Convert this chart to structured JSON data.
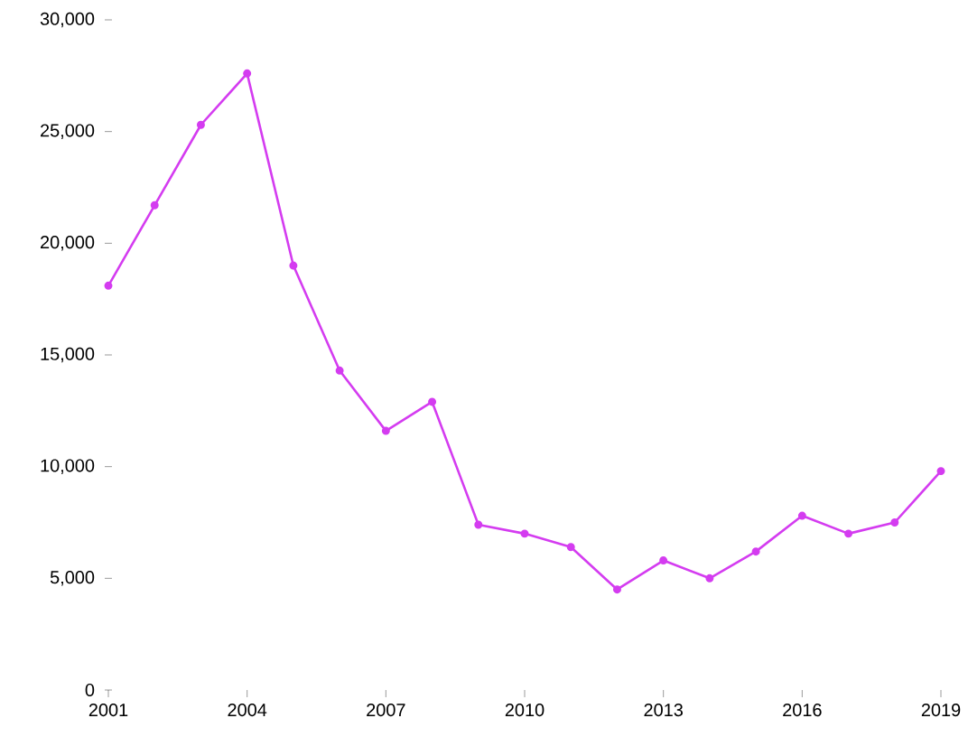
{
  "chart_data": {
    "type": "line",
    "x": [
      2001,
      2002,
      2003,
      2004,
      2005,
      2006,
      2007,
      2008,
      2009,
      2010,
      2011,
      2012,
      2013,
      2014,
      2015,
      2016,
      2017,
      2018,
      2019
    ],
    "series": [
      {
        "color": "#d43cf0",
        "values": [
          18100,
          21700,
          25300,
          27600,
          19000,
          14300,
          11600,
          12900,
          7400,
          7000,
          6400,
          4500,
          5800,
          5000,
          6200,
          7800,
          7000,
          7500,
          9800
        ]
      }
    ],
    "xlim": [
      2001,
      2019
    ],
    "xticks": [
      2001,
      2004,
      2007,
      2010,
      2013,
      2016,
      2019
    ],
    "ylim": [
      0,
      30000
    ],
    "yticks": [
      0,
      {
        "value": 5000,
        "label": "5,000"
      },
      {
        "value": 10000,
        "label": "10,000"
      },
      {
        "value": 15000,
        "label": "15,000"
      },
      {
        "value": 20000,
        "label": "20,000"
      },
      {
        "value": 25000,
        "label": "25,000"
      },
      {
        "value": 30000,
        "label": "30,000"
      }
    ],
    "marker": "circle",
    "line_style": "solid"
  }
}
